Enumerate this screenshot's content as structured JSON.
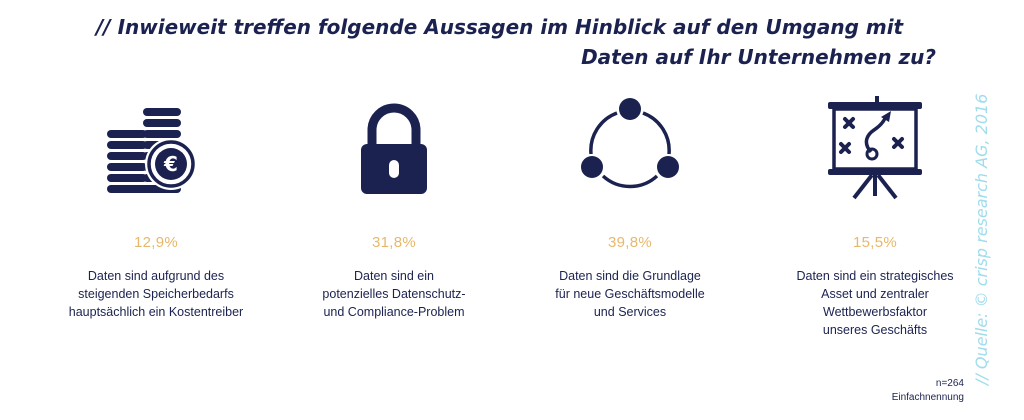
{
  "title": {
    "line1": "// Inwieweit treffen folgende Aussagen im Hinblick auf den Umgang mit",
    "line2": "Daten auf Ihr Unternehmen zu?"
  },
  "source": "// Quelle: © crisp research AG, 2016",
  "note": {
    "n": "n=264",
    "type": "Einfachnennung"
  },
  "colors": {
    "navy": "#1b2250",
    "accent": "#e8b86a",
    "source": "#9fdcec"
  },
  "chart_data": {
    "type": "table",
    "title": "// Inwieweit treffen folgende Aussagen im Hinblick auf den Umgang mit Daten auf Ihr Unternehmen zu?",
    "unit": "%",
    "categories": [
      "Daten sind aufgrund des steigenden Speicherbedarfs hauptsächlich ein Kostentreiber",
      "Daten sind ein potenzielles Datenschutz- und Compliance-Problem",
      "Daten sind die Grundlage für neue Geschäftsmodelle und Services",
      "Daten sind ein strategisches Asset und zentraler Wettbewerbsfaktor unseres Geschäfts"
    ],
    "values": [
      12.9,
      31.8,
      39.8,
      15.5
    ],
    "items": [
      {
        "icon": "euro-coins-icon",
        "value_label": "12,9%",
        "lines": [
          "Daten sind aufgrund des",
          "steigenden Speicherbedarfs",
          "hauptsächlich ein Kostentreiber"
        ]
      },
      {
        "icon": "padlock-icon",
        "value_label": "31,8%",
        "lines": [
          "Daten sind ein",
          "potenzielles Datenschutz-",
          "und Compliance-Problem"
        ]
      },
      {
        "icon": "cycle-nodes-icon",
        "value_label": "39,8%",
        "lines": [
          "Daten sind die Grundlage",
          "für neue Geschäftsmodelle",
          "und Services"
        ]
      },
      {
        "icon": "strategy-board-icon",
        "value_label": "15,5%",
        "lines": [
          "Daten sind ein strategisches",
          "Asset und zentraler",
          "Wettbewerbsfaktor",
          "unseres Geschäfts"
        ]
      }
    ]
  }
}
